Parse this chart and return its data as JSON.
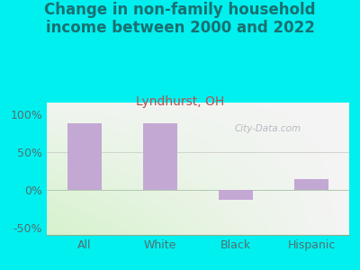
{
  "title": "Change in non-family household\nincome between 2000 and 2022",
  "subtitle": "Lyndhurst, OH",
  "categories": [
    "All",
    "White",
    "Black",
    "Hispanic"
  ],
  "values": [
    88,
    88,
    -13,
    14
  ],
  "bar_color": "#c4a8d4",
  "title_color": "#1a7070",
  "subtitle_color": "#b85050",
  "tick_label_color": "#507070",
  "background_outer": "#00f0f0",
  "ylim": [
    -60,
    115
  ],
  "yticks": [
    -50,
    0,
    50,
    100
  ],
  "ytick_labels": [
    "-50%",
    "0%",
    "50%",
    "100%"
  ],
  "watermark": "City-Data.com",
  "title_fontsize": 12,
  "subtitle_fontsize": 10,
  "tick_fontsize": 9,
  "bar_width": 0.45
}
